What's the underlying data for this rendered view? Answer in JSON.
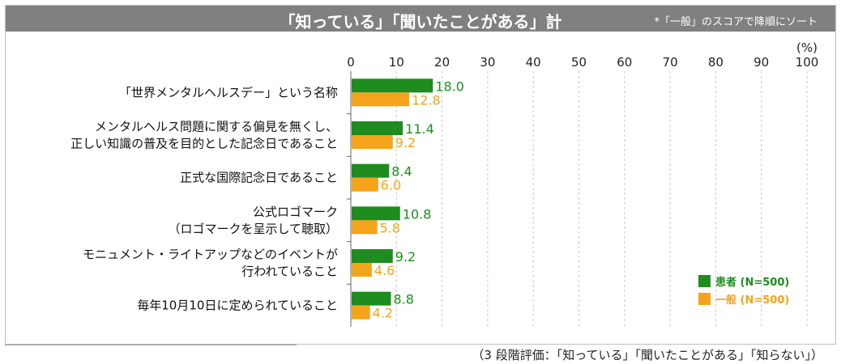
{
  "header": {
    "title": "「知っている」「聞いたことがある」計",
    "note": "*「一般」のスコアで降順にソート"
  },
  "footnote": "（3 段階評価：「知っている」「聞いたことがある」「知らない」）",
  "colors": {
    "series1": "#1e8c1e",
    "series2": "#f5a31a",
    "header": "#808080"
  },
  "chart_data": {
    "type": "bar",
    "orientation": "horizontal",
    "unit_label": "(%)",
    "xlim": [
      0,
      100
    ],
    "x_ticks": [
      0,
      10,
      20,
      30,
      40,
      50,
      60,
      70,
      80,
      90,
      100
    ],
    "categories": [
      [
        "「世界メンタルヘルスデー」という名称"
      ],
      [
        "メンタルヘルス問題に関する偏見を無くし、",
        "正しい知識の普及を目的とした記念日であること"
      ],
      [
        "正式な国際記念日であること"
      ],
      [
        "公式ロゴマーク",
        "（ロゴマークを呈示して聴取）"
      ],
      [
        "モニュメント・ライトアップなどのイベントが",
        "行われていること"
      ],
      [
        "毎年10月10日に定められていること"
      ]
    ],
    "series": [
      {
        "name": "患者 (N=500)",
        "values": [
          18.0,
          11.4,
          8.4,
          10.8,
          9.2,
          8.8
        ]
      },
      {
        "name": "一般 (N=500)",
        "values": [
          12.8,
          9.2,
          6.0,
          5.8,
          4.6,
          4.2
        ]
      }
    ],
    "value_labels": [
      [
        "18.0",
        "11.4",
        "8.4",
        "10.8",
        "9.2",
        "8.8"
      ],
      [
        "12.8",
        "9.2",
        "6.0",
        "5.8",
        "4.6",
        "4.2"
      ]
    ],
    "grid": true,
    "legend": "bottom-right"
  }
}
